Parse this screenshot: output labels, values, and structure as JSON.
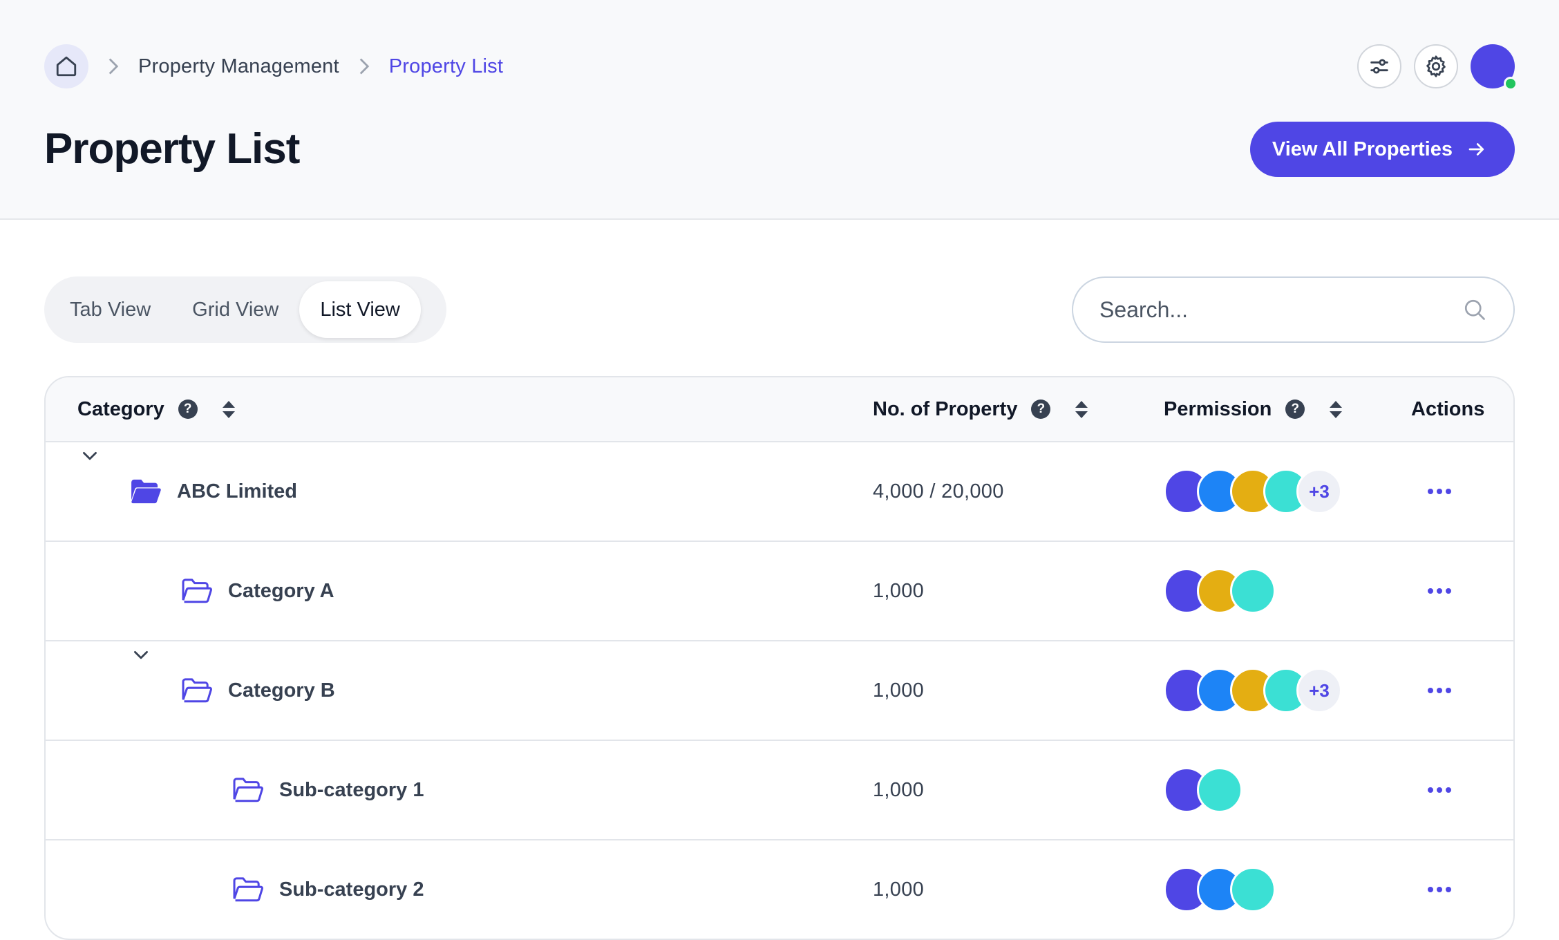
{
  "breadcrumb": {
    "home_icon": "home-icon",
    "items": [
      "Property Management",
      "Property List"
    ]
  },
  "page": {
    "title": "Property List",
    "primary_button": "View All Properties"
  },
  "top_icons": [
    "sliders-icon",
    "gear-icon",
    "user-avatar"
  ],
  "view_toggle": {
    "tabs": [
      "Tab View",
      "Grid View",
      "List View"
    ],
    "active": "List View"
  },
  "search": {
    "placeholder": "Search..."
  },
  "table": {
    "columns": {
      "category": "Category",
      "count": "No. of Property",
      "permission": "Permission",
      "actions": "Actions"
    },
    "rows": [
      {
        "name": "ABC Limited",
        "count": "4,000 / 20,000",
        "level": 0,
        "expandable": true,
        "folder": "filled",
        "avatars": [
          "#4f46e5",
          "#1d84f6",
          "#e4ae12",
          "#3be0d4"
        ],
        "more": "+3"
      },
      {
        "name": "Category A",
        "count": "1,000",
        "level": 1,
        "expandable": false,
        "folder": "outline",
        "avatars": [
          "#4f46e5",
          "#e4ae12",
          "#3be0d4"
        ],
        "more": ""
      },
      {
        "name": "Category B",
        "count": "1,000",
        "level": 1,
        "expandable": true,
        "folder": "outline",
        "avatars": [
          "#4f46e5",
          "#1d84f6",
          "#e4ae12",
          "#3be0d4"
        ],
        "more": "+3"
      },
      {
        "name": "Sub-category 1",
        "count": "1,000",
        "level": 2,
        "expandable": false,
        "folder": "outline",
        "avatars": [
          "#4f46e5",
          "#3be0d4"
        ],
        "more": ""
      },
      {
        "name": "Sub-category 2",
        "count": "1,000",
        "level": 2,
        "expandable": false,
        "folder": "outline",
        "avatars": [
          "#4f46e5",
          "#1d84f6",
          "#3be0d4"
        ],
        "more": ""
      }
    ]
  },
  "colors": {
    "accent": "#4f46e5",
    "online": "#22c55e"
  }
}
